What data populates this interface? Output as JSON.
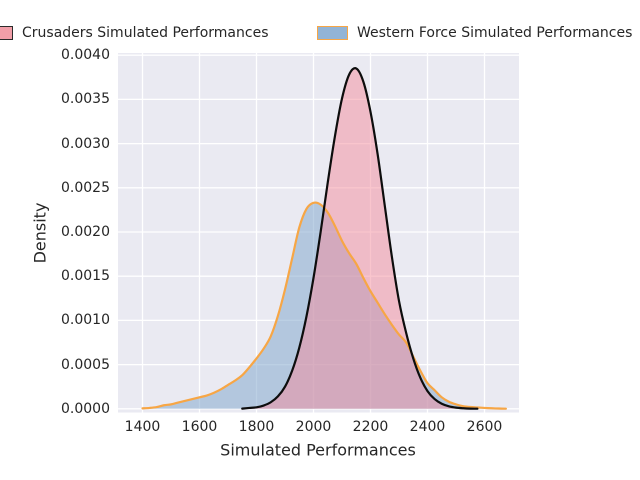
{
  "legend": {
    "items": [
      {
        "label": "Crusaders Simulated Performances",
        "swatch_fill": "#f19ea8",
        "swatch_edge": "#2b2b2b"
      },
      {
        "label": "Western Force Simulated Performances",
        "swatch_fill": "#92b4d6",
        "swatch_edge": "#f7a645"
      }
    ]
  },
  "chart_data": {
    "type": "area",
    "subtype": "kde-density",
    "title": "",
    "xlabel": "Simulated Performances",
    "ylabel": "Density",
    "grid": true,
    "legend_position": "top-center",
    "plot_background": "#eaeaf2",
    "grid_color": "#ffffff",
    "text_color": "#262626",
    "xlim": [
      1314,
      2721
    ],
    "ylim": [
      0,
      0.00402
    ],
    "xticks": [
      1400,
      1600,
      1800,
      2000,
      2200,
      2400,
      2600
    ],
    "xtick_labels": [
      "1400",
      "1600",
      "1800",
      "2000",
      "2200",
      "2400",
      "2600"
    ],
    "yticks": [
      0,
      0.0005,
      0.001,
      0.0015,
      0.002,
      0.0025,
      0.003,
      0.0035,
      0.004
    ],
    "ytick_labels": [
      "0.0000",
      "0.0005",
      "0.0010",
      "0.0015",
      "0.0020",
      "0.0025",
      "0.0030",
      "0.0035",
      "0.0040"
    ],
    "series": [
      {
        "name": "Western Force Simulated Performances",
        "peak_x": 2005,
        "peak_density": 0.00233,
        "line_color": "#f7a645",
        "fill_color": "rgba(133,169,205,0.55)",
        "x": [
          1400,
          1425,
          1450,
          1475,
          1500,
          1525,
          1550,
          1575,
          1600,
          1625,
          1650,
          1675,
          1700,
          1725,
          1750,
          1775,
          1800,
          1825,
          1850,
          1875,
          1900,
          1925,
          1950,
          1975,
          2000,
          2025,
          2050,
          2075,
          2100,
          2125,
          2150,
          2175,
          2200,
          2225,
          2250,
          2275,
          2300,
          2325,
          2350,
          2375,
          2400,
          2425,
          2450,
          2475,
          2500,
          2525,
          2550,
          2575,
          2600,
          2625,
          2650,
          2675
        ],
        "density": [
          5e-06,
          1e-05,
          2e-05,
          4e-05,
          5e-05,
          7e-05,
          9e-05,
          0.00011,
          0.00013,
          0.00015,
          0.00018,
          0.00022,
          0.00027,
          0.00032,
          0.00038,
          0.00047,
          0.00057,
          0.00068,
          0.00082,
          0.00105,
          0.00135,
          0.0017,
          0.00205,
          0.00226,
          0.00233,
          0.00231,
          0.00222,
          0.00207,
          0.0019,
          0.00176,
          0.00164,
          0.00148,
          0.00133,
          0.0012,
          0.00107,
          0.00095,
          0.00084,
          0.00075,
          0.00059,
          0.00043,
          0.00029,
          0.00021,
          0.00013,
          8e-05,
          5e-05,
          3e-05,
          2e-05,
          1.5e-05,
          1e-05,
          6e-06,
          3e-06,
          1e-06
        ]
      },
      {
        "name": "Crusaders Simulated Performances",
        "peak_x": 2145,
        "peak_density": 0.00385,
        "line_color": "#0d0d0d",
        "fill_color": "rgba(243,139,156,0.50)",
        "x": [
          1750,
          1775,
          1800,
          1825,
          1850,
          1875,
          1900,
          1925,
          1950,
          1975,
          2000,
          2025,
          2050,
          2075,
          2100,
          2125,
          2150,
          2175,
          2200,
          2225,
          2250,
          2275,
          2300,
          2325,
          2350,
          2375,
          2400,
          2425,
          2450,
          2475,
          2500,
          2525,
          2550,
          2575
        ],
        "density": [
          2e-06,
          1e-05,
          1.7e-05,
          3.7e-05,
          7.4e-05,
          0.00014,
          0.00025,
          0.00043,
          0.00069,
          0.00104,
          0.00148,
          0.002,
          0.00256,
          0.00308,
          0.00351,
          0.00378,
          0.00385,
          0.0037,
          0.00336,
          0.00288,
          0.0023,
          0.00172,
          0.00122,
          0.00086,
          0.00057,
          0.00035,
          0.0002,
          0.00011,
          5.7e-05,
          2.8e-05,
          1.3e-05,
          6e-06,
          2e-06,
          1e-06
        ]
      }
    ]
  }
}
